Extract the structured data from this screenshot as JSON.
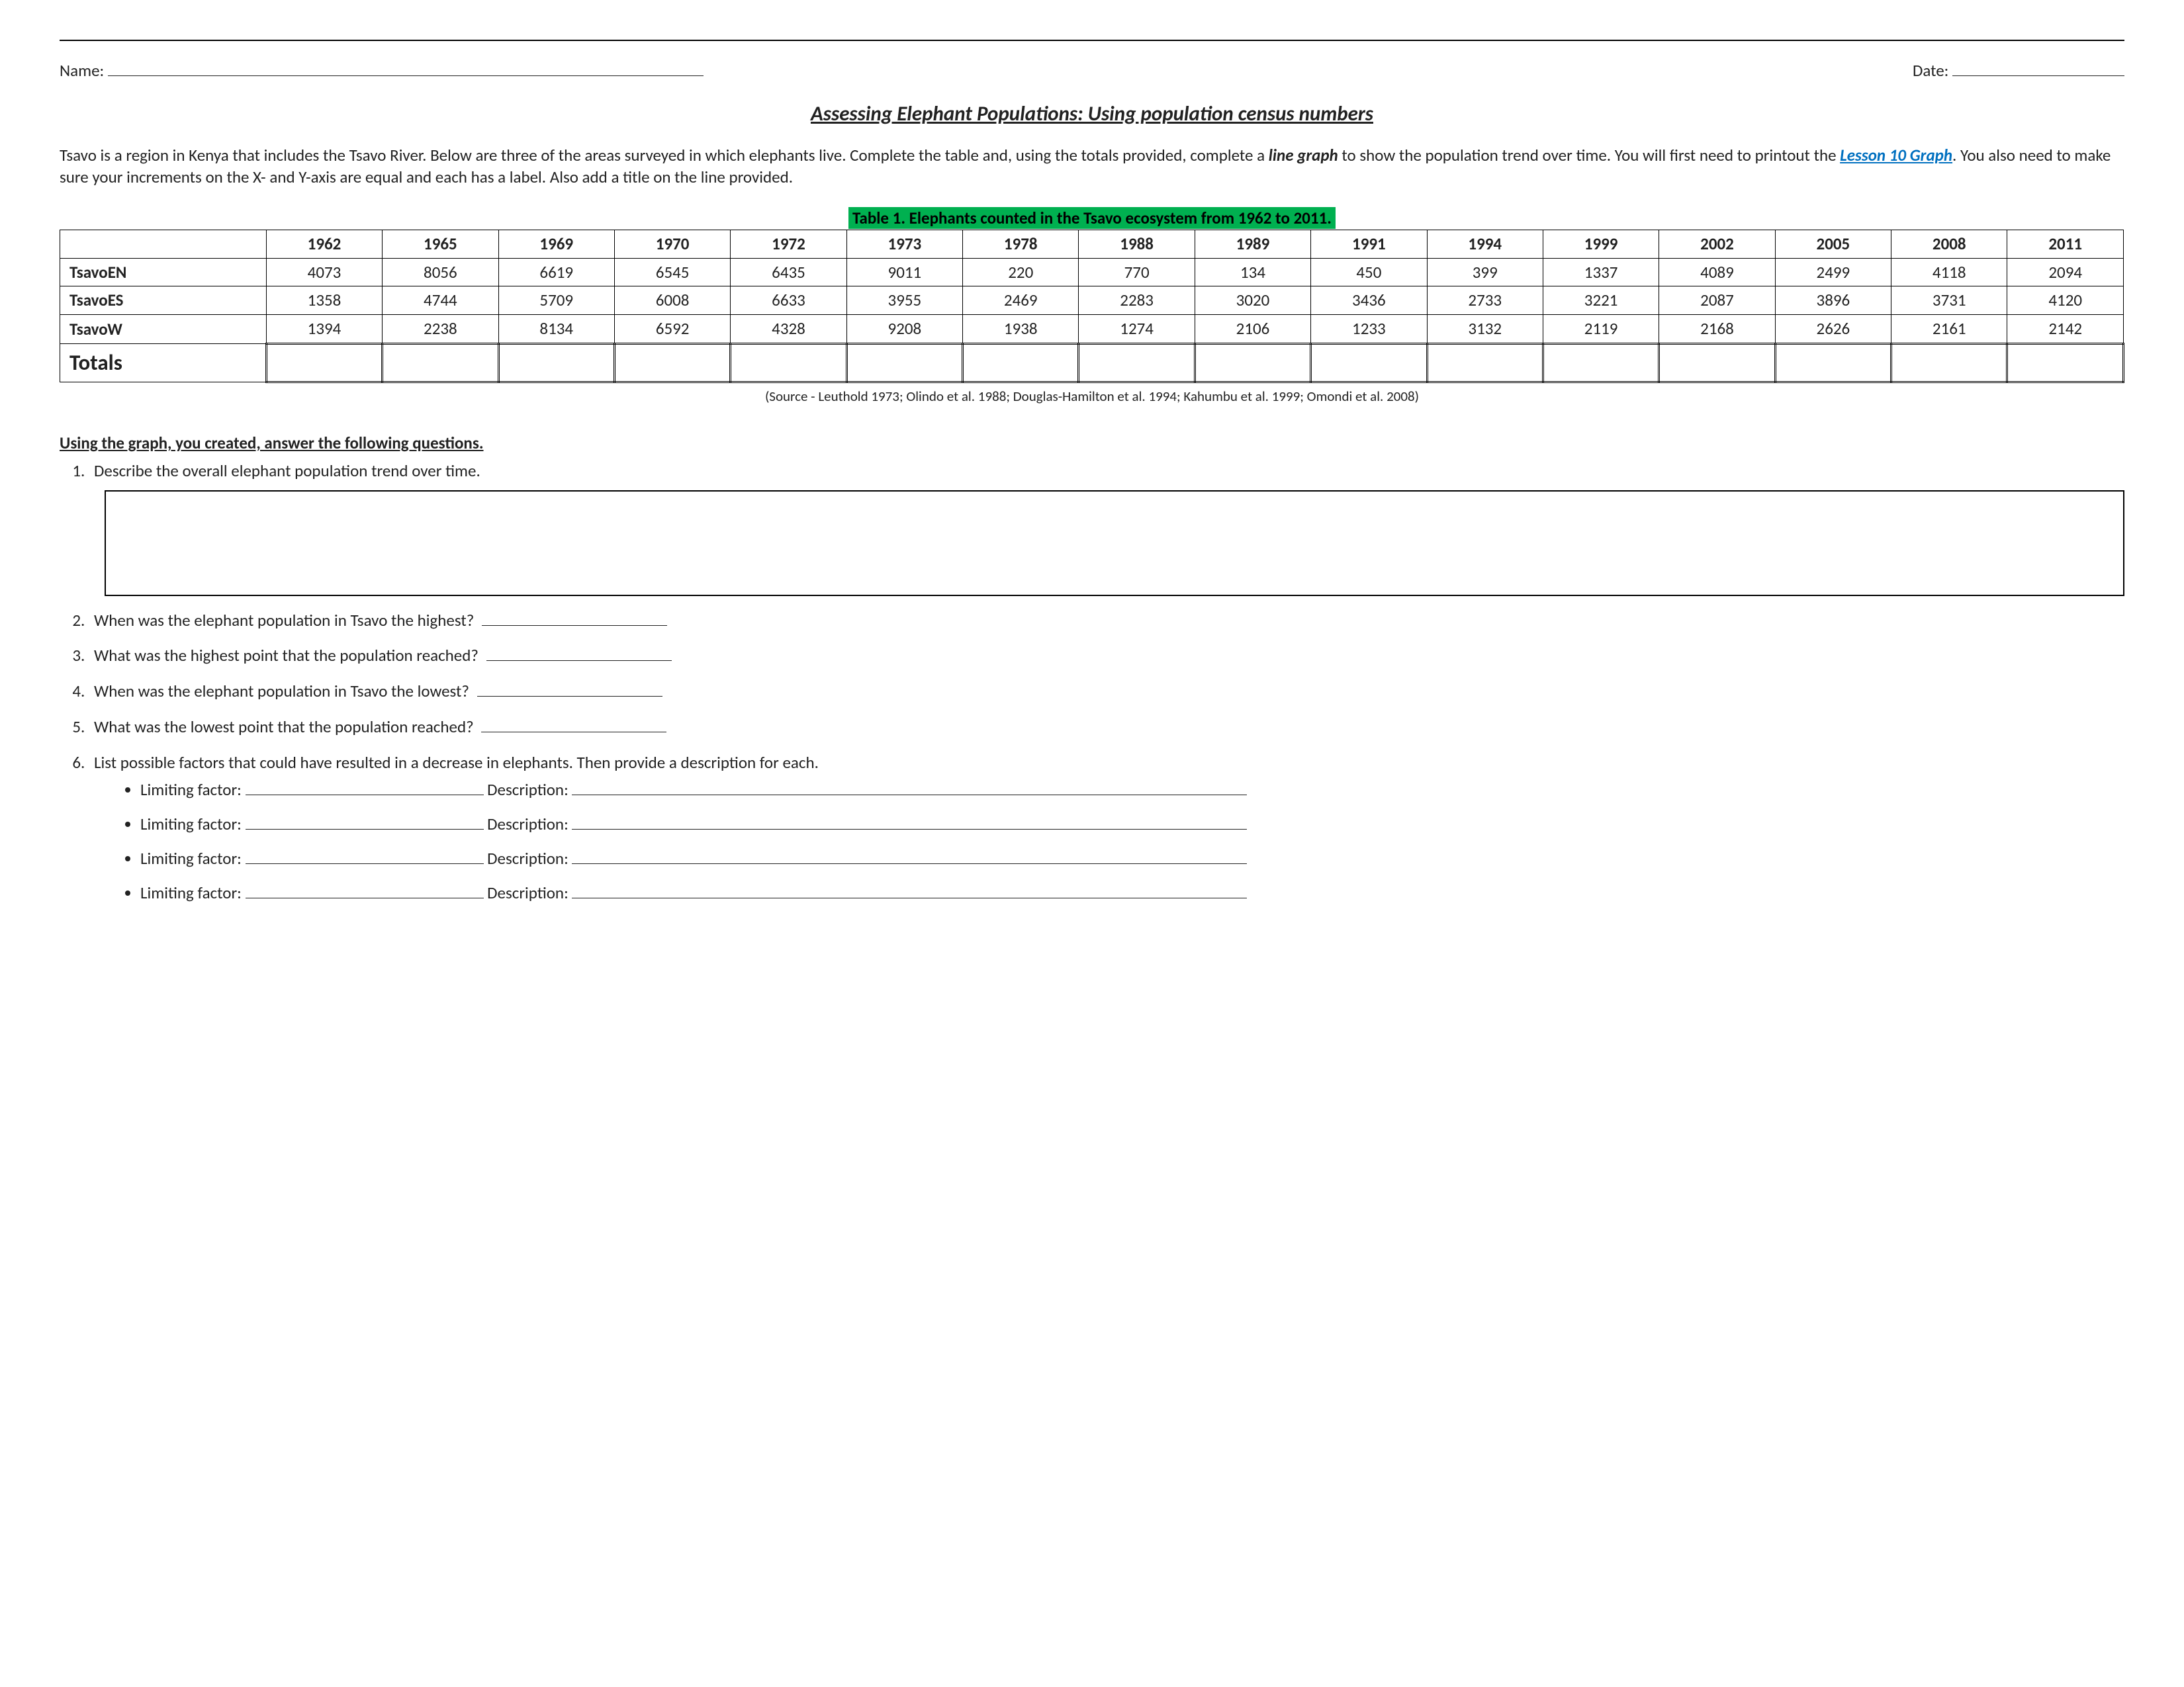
{
  "header": {
    "name_label": "Name:",
    "date_label": "Date:"
  },
  "title": "Assessing Elephant Populations:  Using population census numbers",
  "intro": {
    "part1": "Tsavo is a region in Kenya that includes the Tsavo River.  Below are three of the areas surveyed in which elephants live.  Complete the table and, using the totals provided, complete a ",
    "line_graph": "line graph",
    "part2": " to show the population trend over time.  You will first need to printout the ",
    "link_text": "Lesson 10 Graph",
    "part3": ". You also need to make sure your increments on the X- and Y-axis are equal and each has a label.  Also add a title on the line provided."
  },
  "table": {
    "caption": "Table 1. Elephants counted in the Tsavo ecosystem from 1962 to 2011.",
    "caption_bg": "#00b050",
    "years": [
      "1962",
      "1965",
      "1969",
      "1970",
      "1972",
      "1973",
      "1978",
      "1988",
      "1989",
      "1991",
      "1994",
      "1999",
      "2002",
      "2005",
      "2008",
      "2011"
    ],
    "rows": [
      {
        "label": "TsavoEN",
        "values": [
          "4073",
          "8056",
          "6619",
          "6545",
          "6435",
          "9011",
          "220",
          "770",
          "134",
          "450",
          "399",
          "1337",
          "4089",
          "2499",
          "4118",
          "2094"
        ]
      },
      {
        "label": "TsavoES",
        "values": [
          "1358",
          "4744",
          "5709",
          "6008",
          "6633",
          "3955",
          "2469",
          "2283",
          "3020",
          "3436",
          "2733",
          "3221",
          "2087",
          "3896",
          "3731",
          "4120"
        ]
      },
      {
        "label": "TsavoW",
        "values": [
          "1394",
          "2238",
          "8134",
          "6592",
          "4328",
          "9208",
          "1938",
          "1274",
          "2106",
          "1233",
          "3132",
          "2119",
          "2168",
          "2626",
          "2161",
          "2142"
        ]
      }
    ],
    "totals_label": "Totals",
    "source": "(Source - Leuthold 1973; Olindo et al. 1988; Douglas-Hamilton et al. 1994; Kahumbu et al. 1999; Omondi et al. 2008)"
  },
  "questions": {
    "section_head": "Using the graph, you created, answer the following questions.",
    "q1": "Describe the overall elephant population trend over time.",
    "q2": "When was the elephant population in Tsavo the highest?",
    "q3": "What was the highest point that the population reached?",
    "q4": "When was the elephant population in Tsavo the lowest?",
    "q5": "What was the lowest point that the population reached?",
    "q6": "List possible factors that could have resulted in a decrease in elephants.  Then provide a description for each.",
    "lf_label": "Limiting factor:",
    "desc_label": "Description:"
  }
}
